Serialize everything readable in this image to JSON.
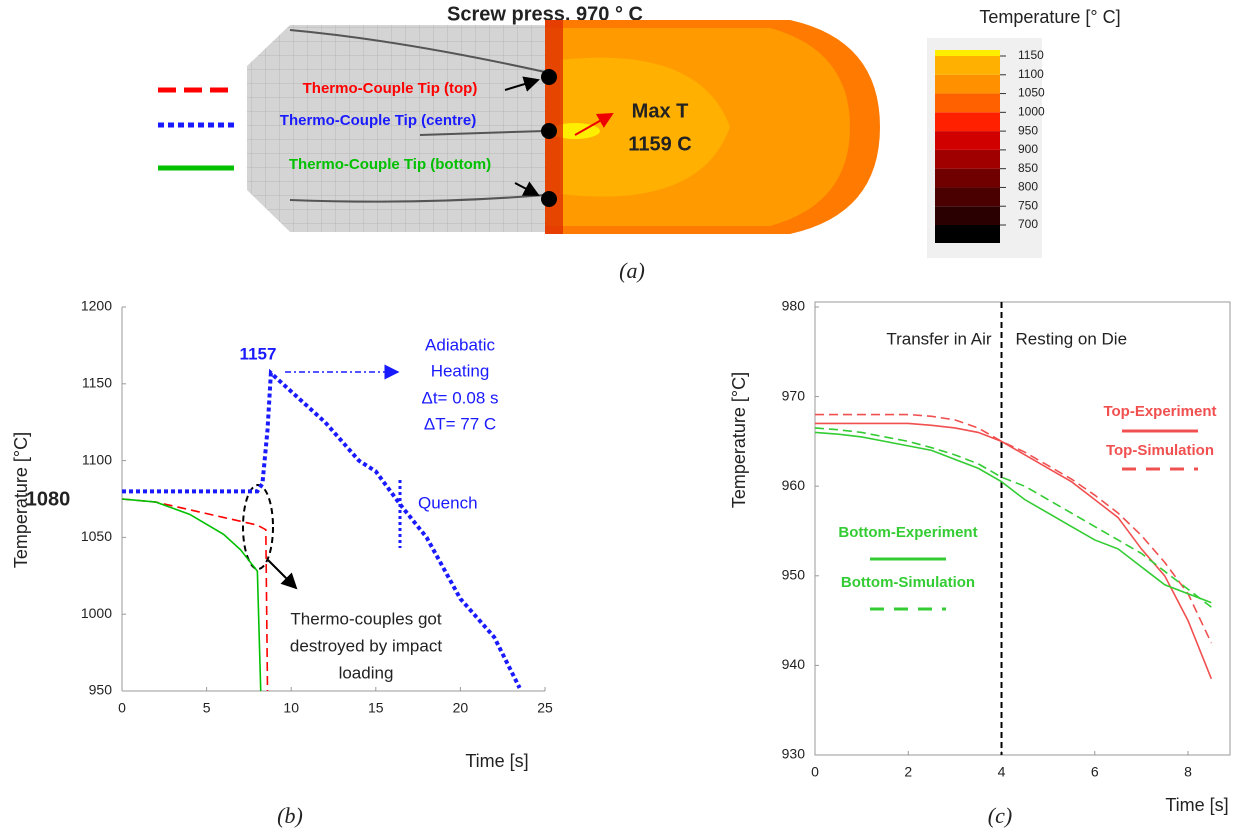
{
  "panel_a": {
    "title": "Screw press, 970 ° C",
    "max_label": "Max T",
    "max_value": "1159 C",
    "caption": "(a)",
    "colorbar": {
      "title": "Temperature [° C]",
      "ticks": [
        700,
        750,
        800,
        850,
        900,
        950,
        1000,
        1050,
        1100,
        1150
      ],
      "colors": [
        "#000000",
        "#2a0000",
        "#4a0000",
        "#700000",
        "#a00000",
        "#d00000",
        "#ff2000",
        "#ff6000",
        "#ff9000",
        "#ffb000",
        "#ffee00"
      ]
    }
  },
  "chart_data": [
    {
      "type": "line",
      "caption": "(b)",
      "xlabel": "Time [s]",
      "ylabel": "Temperature [°C]",
      "xlim": [
        0,
        25
      ],
      "ylim": [
        950,
        1200
      ],
      "xticks": [
        0,
        5,
        10,
        15,
        20,
        25
      ],
      "yticks": [
        950,
        1000,
        1050,
        1100,
        1150,
        1200
      ],
      "box": false,
      "annotations": {
        "start": "1080",
        "peak": "1157",
        "heating_note": [
          "Adiabatic",
          "Heating",
          "Δt= 0.08 s",
          "ΔT= 77 C"
        ],
        "quench": "Quench",
        "damage_note": [
          "Thermo-couples  got",
          "destroyed by impact",
          "loading"
        ]
      },
      "series": [
        {
          "name": "Thermo-Couple Tip (top)",
          "color": "#ff0000",
          "style": "dashed",
          "x": [
            0,
            2,
            4,
            6,
            8,
            8.5,
            8.6
          ],
          "values": [
            1075,
            1073,
            1068,
            1063,
            1058,
            1055,
            950
          ]
        },
        {
          "name": "Thermo-Couple Tip (centre)",
          "color": "#1a1aff",
          "style": "dotted",
          "x": [
            0,
            8,
            8.3,
            8.6,
            8.8,
            9,
            10,
            12,
            14,
            15,
            16.4,
            18,
            20,
            22,
            23.5
          ],
          "values": [
            1080,
            1080,
            1085,
            1120,
            1157,
            1155,
            1145,
            1125,
            1100,
            1093,
            1072,
            1050,
            1010,
            985,
            952
          ]
        },
        {
          "name": "Thermo-Couple Tip (bottom)",
          "color": "#00c000",
          "style": "solid",
          "x": [
            0,
            2,
            4,
            6,
            7,
            7.5,
            8,
            8.2
          ],
          "values": [
            1075,
            1073,
            1065,
            1052,
            1042,
            1035,
            1028,
            950
          ]
        }
      ]
    },
    {
      "type": "line",
      "caption": "(c)",
      "xlabel": "Time [s]",
      "ylabel": "Temperature [°C]",
      "xlim": [
        0,
        8.9
      ],
      "ylim": [
        930,
        980
      ],
      "xticks": [
        0,
        2,
        4,
        6,
        8
      ],
      "yticks": [
        930,
        940,
        950,
        960,
        970,
        980
      ],
      "box": true,
      "phase_boundary": 4,
      "phase_labels": [
        "Transfer in Air",
        "Resting on Die"
      ],
      "x": [
        0,
        0.5,
        1,
        1.5,
        2,
        2.5,
        3,
        3.5,
        4,
        4.5,
        5,
        5.5,
        6,
        6.5,
        7,
        7.5,
        8,
        8.5
      ],
      "series": [
        {
          "name": "Top-Experiment",
          "color": "#f05050",
          "style": "solid",
          "values": [
            967,
            967,
            967,
            967,
            967,
            966.8,
            966.5,
            966,
            965,
            963.5,
            962,
            960.5,
            958.5,
            956.5,
            953,
            950,
            945,
            938.5
          ]
        },
        {
          "name": "Top-Simulation",
          "color": "#f05050",
          "style": "dashed",
          "values": [
            968,
            968,
            968,
            968,
            968,
            967.8,
            967.4,
            966.5,
            965,
            963.8,
            962.3,
            960.8,
            959,
            957,
            954.5,
            951.5,
            948,
            942.5
          ]
        },
        {
          "name": "Bottom-Experiment",
          "color": "#33cc33",
          "style": "solid",
          "values": [
            966,
            965.8,
            965.5,
            965,
            964.5,
            964,
            963,
            962,
            960.5,
            958.5,
            957,
            955.5,
            954,
            953,
            951,
            949,
            948,
            947
          ]
        },
        {
          "name": "Bottom-Simulation",
          "color": "#33cc33",
          "style": "dashed",
          "values": [
            966.5,
            966.3,
            966,
            965.5,
            965,
            964.3,
            963.5,
            962.5,
            961,
            960,
            958.5,
            957,
            955.5,
            954,
            952.5,
            950.5,
            948.5,
            946.5
          ]
        }
      ]
    }
  ]
}
